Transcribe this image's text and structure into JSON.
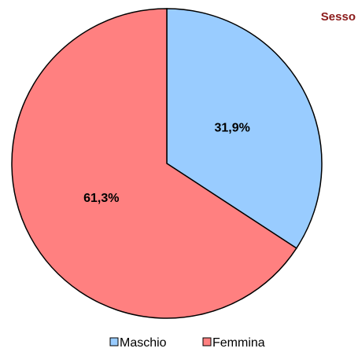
{
  "chart_data": {
    "type": "pie",
    "title": "Sesso",
    "categories": [
      "Maschio",
      "Femmina"
    ],
    "values": [
      31.9,
      61.3
    ],
    "value_labels": [
      "31,9%",
      "61,3%"
    ],
    "colors": [
      "#99ccff",
      "#ff8080"
    ],
    "legend": "bottom"
  }
}
